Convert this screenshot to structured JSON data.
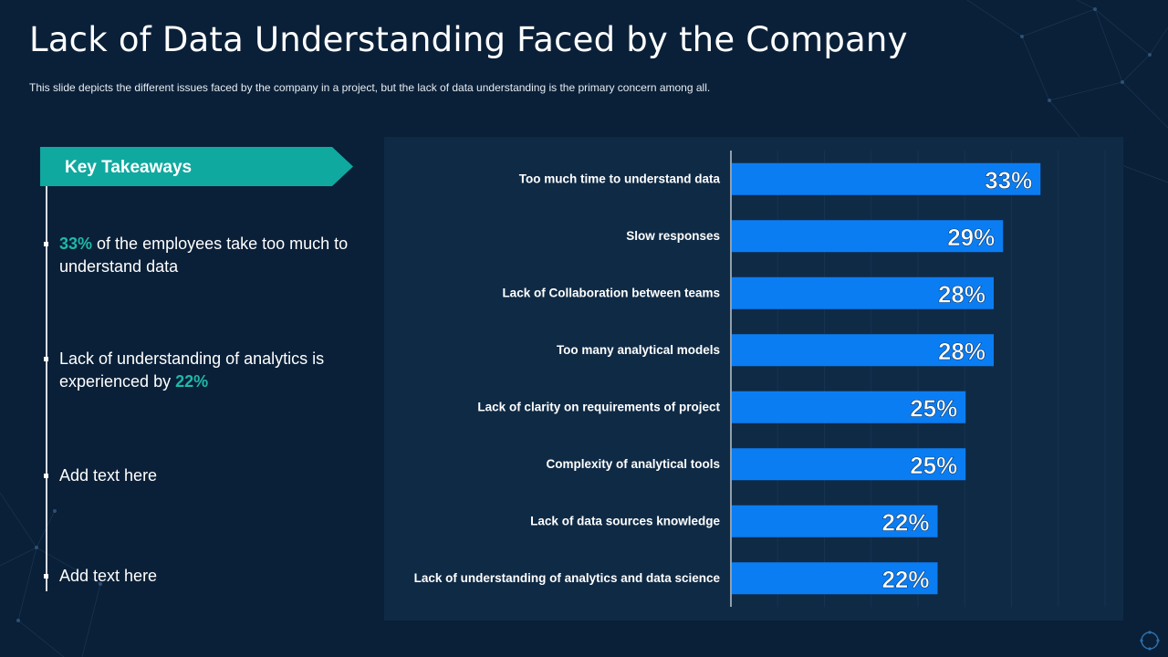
{
  "slide": {
    "title": "Lack of Data Understanding Faced by the Company",
    "subtitle": "This slide depicts the different  issues faced by the company in a project, but the lack of data understanding is the primary concern among all."
  },
  "takeaways": {
    "heading": "Key Takeaways",
    "items": [
      {
        "highlight_before": "33%",
        "text": " of the employees take too much to understand data",
        "highlight_after": ""
      },
      {
        "highlight_before": "",
        "text": "Lack of understanding of analytics is experienced by ",
        "highlight_after": "22%"
      },
      {
        "highlight_before": "",
        "text": "Add text here",
        "highlight_after": ""
      },
      {
        "highlight_before": "",
        "text": "Add text here",
        "highlight_after": ""
      }
    ]
  },
  "colors": {
    "background": "#0a2038",
    "panel": "#0f2a45",
    "bar": "#0b7df3",
    "accent_teal": "#10a99f",
    "highlight": "#1fb8a8"
  },
  "chart_data": {
    "type": "bar",
    "orientation": "horizontal",
    "categories": [
      "Too much time to understand data",
      "Slow responses",
      "Lack of Collaboration between teams",
      "Too many analytical models",
      "Lack of clarity on requirements of project",
      "Complexity of analytical tools",
      "Lack of data sources knowledge",
      "Lack of understanding of analytics and data science"
    ],
    "values": [
      33,
      29,
      28,
      28,
      25,
      25,
      22,
      22
    ],
    "value_labels": [
      "33%",
      "29%",
      "28%",
      "28%",
      "25%",
      "25%",
      "22%",
      "22%"
    ],
    "title": "",
    "xlabel": "",
    "ylabel": "",
    "xlim": [
      0,
      40
    ],
    "grid": true,
    "legend": "none"
  }
}
